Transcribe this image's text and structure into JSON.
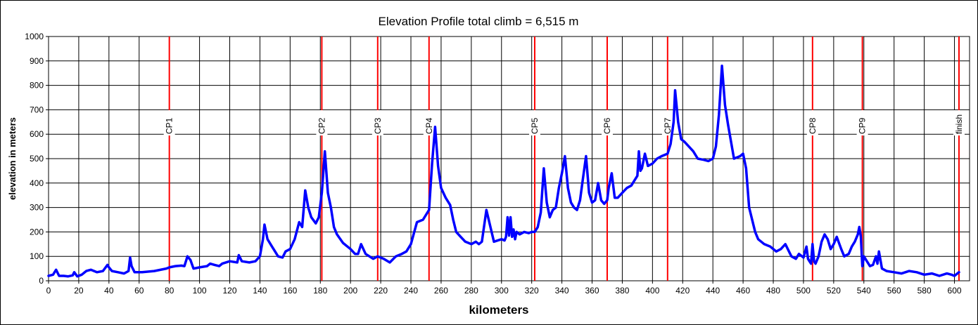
{
  "chart_data": {
    "type": "line",
    "title": "Elevation Profile   total climb = 6,515 m",
    "xlabel": "kilometers",
    "ylabel": "elevation in meters",
    "xlim": [
      0,
      610
    ],
    "ylim": [
      0,
      1000
    ],
    "x_ticks": [
      0,
      20,
      40,
      60,
      80,
      100,
      120,
      140,
      160,
      180,
      200,
      220,
      240,
      260,
      280,
      300,
      320,
      340,
      360,
      380,
      400,
      420,
      440,
      460,
      480,
      500,
      520,
      540,
      560,
      580,
      600
    ],
    "y_ticks": [
      0,
      100,
      200,
      300,
      400,
      500,
      600,
      700,
      800,
      900,
      1000
    ],
    "grid": true,
    "line_color": "#0000ff",
    "marker_color": "#ff0000",
    "checkpoints": [
      {
        "label": "CP1",
        "km": 80
      },
      {
        "label": "CP2",
        "km": 181
      },
      {
        "label": "CP3",
        "km": 218
      },
      {
        "label": "CP4",
        "km": 252
      },
      {
        "label": "CP5",
        "km": 322
      },
      {
        "label": "CP6",
        "km": 370
      },
      {
        "label": "CP7",
        "km": 410
      },
      {
        "label": "CP8",
        "km": 506
      },
      {
        "label": "CP9",
        "km": 539
      },
      {
        "label": "finish",
        "km": 603
      }
    ],
    "series": [
      {
        "x": [
          0,
          3,
          5,
          7,
          10,
          13,
          16,
          17,
          19,
          22,
          25,
          28,
          32,
          36,
          39,
          40,
          42,
          46,
          50,
          53,
          54,
          55,
          57,
          62,
          70,
          78,
          80,
          84,
          88,
          90,
          92,
          94,
          96,
          100,
          105,
          107,
          110,
          113,
          115,
          120,
          125,
          126,
          128,
          133,
          137,
          140,
          142,
          143,
          145,
          148,
          150,
          152,
          155,
          157,
          160,
          163,
          166,
          168,
          170,
          172,
          174,
          177,
          179,
          181,
          183,
          185,
          187,
          189,
          191,
          195,
          200,
          203,
          205,
          207,
          210,
          215,
          218,
          222,
          226,
          230,
          234,
          237,
          240,
          244,
          248,
          250,
          252,
          254,
          256,
          258,
          260,
          263,
          266,
          268,
          270,
          273,
          276,
          280,
          283,
          285,
          287,
          290,
          295,
          300,
          302,
          303,
          304,
          305,
          306,
          307,
          308,
          309,
          310,
          312,
          315,
          318,
          320,
          322,
          324,
          326,
          328,
          330,
          332,
          334,
          336,
          338,
          340,
          342,
          344,
          346,
          348,
          350,
          352,
          354,
          356,
          358,
          360,
          362,
          364,
          366,
          368,
          370,
          371,
          373,
          375,
          377,
          380,
          383,
          386,
          388,
          390,
          391,
          392,
          393,
          395,
          397,
          400,
          403,
          406,
          410,
          412,
          414,
          415,
          417,
          419,
          421,
          424,
          427,
          430,
          434,
          437,
          440,
          442,
          444,
          446,
          448,
          450,
          454,
          458,
          460,
          462,
          464,
          468,
          470,
          474,
          478,
          482,
          485,
          488,
          492,
          495,
          497,
          500,
          502,
          503,
          504,
          505,
          506,
          507,
          508,
          510,
          512,
          514,
          516,
          518,
          520,
          522,
          525,
          527,
          530,
          532,
          534,
          536,
          537,
          538,
          539,
          540,
          542,
          544,
          546,
          548,
          549,
          550,
          552,
          555,
          560,
          565,
          570,
          575,
          580,
          585,
          590,
          595,
          598,
          600,
          603
        ],
        "y": [
          20,
          25,
          45,
          20,
          20,
          18,
          22,
          35,
          18,
          25,
          40,
          45,
          35,
          40,
          65,
          55,
          40,
          35,
          30,
          40,
          95,
          60,
          35,
          35,
          40,
          50,
          55,
          60,
          62,
          60,
          100,
          85,
          50,
          55,
          60,
          70,
          65,
          60,
          70,
          80,
          75,
          105,
          80,
          75,
          80,
          100,
          170,
          230,
          170,
          140,
          120,
          100,
          95,
          120,
          130,
          170,
          240,
          220,
          370,
          300,
          260,
          235,
          260,
          360,
          530,
          360,
          300,
          220,
          190,
          155,
          130,
          110,
          110,
          150,
          110,
          90,
          100,
          90,
          75,
          100,
          110,
          120,
          150,
          240,
          250,
          270,
          290,
          480,
          630,
          470,
          380,
          340,
          310,
          250,
          200,
          180,
          160,
          150,
          160,
          150,
          160,
          290,
          160,
          170,
          165,
          180,
          260,
          185,
          260,
          180,
          210,
          170,
          200,
          190,
          200,
          195,
          200,
          200,
          220,
          280,
          460,
          320,
          260,
          290,
          300,
          380,
          440,
          510,
          380,
          320,
          300,
          290,
          330,
          420,
          510,
          360,
          320,
          330,
          400,
          330,
          315,
          330,
          380,
          440,
          340,
          340,
          360,
          380,
          390,
          410,
          430,
          530,
          450,
          460,
          520,
          470,
          480,
          500,
          510,
          520,
          560,
          650,
          780,
          650,
          580,
          570,
          550,
          530,
          500,
          495,
          490,
          500,
          550,
          680,
          880,
          720,
          640,
          500,
          510,
          520,
          460,
          300,
          200,
          170,
          150,
          140,
          120,
          130,
          150,
          100,
          90,
          110,
          95,
          140,
          90,
          80,
          70,
          150,
          80,
          70,
          100,
          160,
          190,
          170,
          130,
          150,
          180,
          130,
          100,
          110,
          140,
          160,
          190,
          220,
          180,
          60,
          100,
          80,
          60,
          65,
          100,
          70,
          120,
          50,
          40,
          35,
          30,
          40,
          35,
          25,
          30,
          20,
          30,
          25,
          20,
          35
        ]
      }
    ]
  }
}
